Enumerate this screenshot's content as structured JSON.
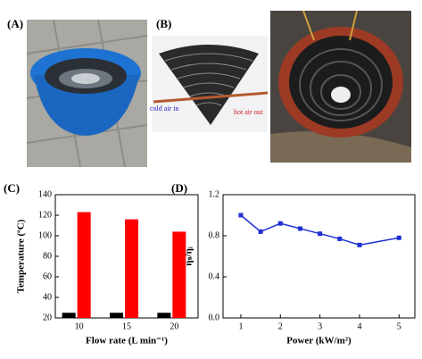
{
  "figure_labels": {
    "a": "(A)",
    "b": "(B)"
  },
  "photo_b": {
    "left_label": "cold air in",
    "right_label": "hot air out"
  },
  "chart_data": [
    {
      "type": "bar",
      "panel": "(C)",
      "y_label": "Temperature (ºC)",
      "x_label": "Flow rate (L min⁻¹)",
      "categories": [
        "10",
        "15",
        "20"
      ],
      "series": [
        {
          "color": "#000000",
          "values": [
            25,
            25,
            25
          ]
        },
        {
          "color": "#ff0000",
          "values": [
            123,
            116,
            104
          ]
        }
      ],
      "ylim": [
        20,
        140
      ],
      "yticks": [
        20,
        40,
        60,
        80,
        100,
        120,
        140
      ]
    },
    {
      "type": "line",
      "panel": "(D)",
      "y_label": "ηₛ/ηᵢ",
      "x_label": "Power (kW/m²)",
      "x": [
        1,
        1.5,
        2,
        2.5,
        3,
        3.5,
        4,
        5
      ],
      "series": [
        {
          "color": "#1f2fd6",
          "values": [
            1.0,
            0.84,
            0.92,
            0.87,
            0.82,
            0.77,
            0.71,
            0.78
          ]
        }
      ],
      "xlim": [
        0.55,
        5.4
      ],
      "xticks": [
        1,
        2,
        3,
        4,
        5
      ],
      "ylim": [
        0,
        1.2
      ],
      "yticks": [
        {
          "value": 0,
          "label": "0.0"
        },
        0.4,
        0.8,
        1.2
      ]
    }
  ]
}
